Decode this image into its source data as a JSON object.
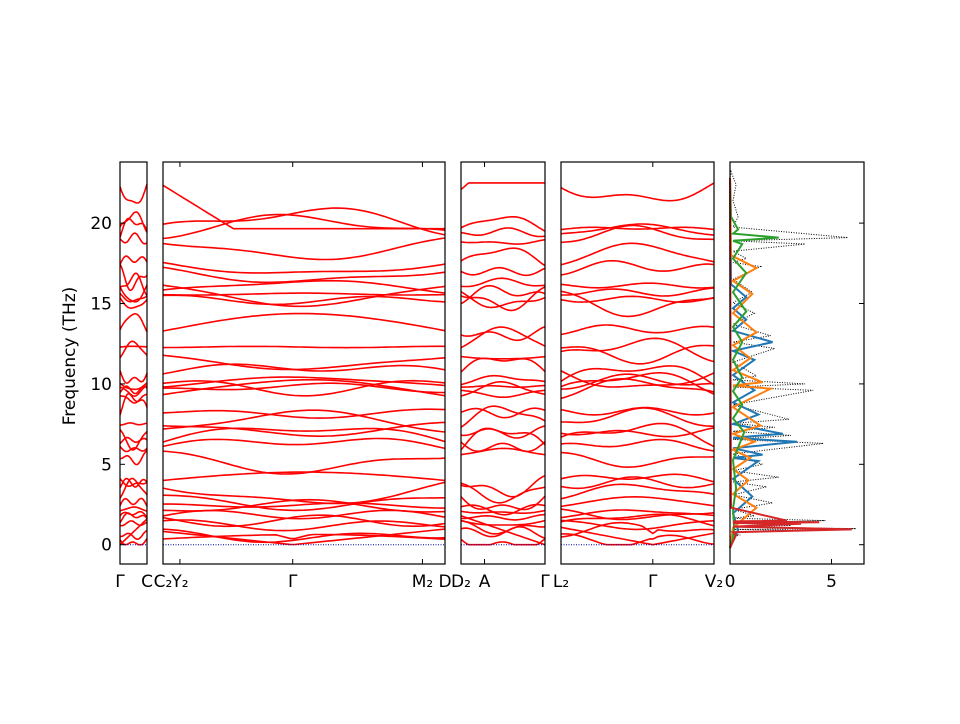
{
  "chart_data": {
    "type": "line",
    "title": "",
    "ylabel": "Frequency (THz)",
    "ylim": [
      -1.2,
      23.8
    ],
    "yticks": [
      0,
      5,
      10,
      15,
      20
    ],
    "grid": false,
    "band_color": "#ff0000",
    "zero_line_color": "#0000aa",
    "path_segments": [
      {
        "labels": [
          "Γ",
          "C"
        ],
        "xlim": [
          0,
          1
        ],
        "crossing": true
      },
      {
        "labels": [
          "C₂",
          "Y₂",
          "Γ",
          "M₂",
          "D"
        ],
        "label_positions": [
          0,
          0.06,
          0.46,
          0.92,
          1
        ]
      },
      {
        "labels": [
          "D₂",
          "A",
          "Γ"
        ],
        "label_positions": [
          0,
          0.28,
          1
        ]
      },
      {
        "labels": [
          "L₂",
          "Γ",
          "V₂"
        ],
        "label_positions": [
          0,
          0.6,
          1
        ]
      }
    ],
    "band_frequencies_at_start": [
      0,
      0.35,
      0.7,
      1.3,
      1.5,
      1.75,
      2.1,
      2.4,
      3.0,
      3.7,
      4.0,
      5.6,
      6.05,
      6.4,
      7.1,
      7.5,
      8.3,
      9.3,
      9.6,
      9.85,
      10.05,
      10.75,
      11.7,
      12.3,
      13.3,
      15.3,
      15.55,
      15.75,
      16.1,
      17.1,
      17.5,
      18.9,
      19.3,
      19.6,
      22.35
    ],
    "band_frequencies_range": [
      0,
      22.5
    ],
    "dos_panel": {
      "xticks": [
        0,
        5
      ],
      "xlim": [
        0,
        6.6
      ],
      "series": [
        {
          "color": "#000000",
          "style": "dotted",
          "points": [
            [
              0.0,
              0.5
            ],
            [
              0.5,
              0.6
            ],
            [
              2.8,
              0.9
            ],
            [
              6.2,
              1.0
            ],
            [
              3.0,
              1.2
            ],
            [
              4.7,
              1.5
            ],
            [
              1.2,
              1.8
            ],
            [
              2.1,
              2.6
            ],
            [
              1.8,
              3.6
            ],
            [
              2.4,
              4.2
            ],
            [
              1.6,
              5.0
            ],
            [
              4.6,
              6.3
            ],
            [
              3.0,
              6.8
            ],
            [
              2.2,
              7.3
            ],
            [
              2.9,
              7.8
            ],
            [
              4.1,
              9.6
            ],
            [
              3.7,
              10.0
            ],
            [
              1.3,
              10.5
            ],
            [
              2.2,
              12.2
            ],
            [
              2.0,
              13.0
            ],
            [
              1.2,
              14.4
            ],
            [
              1.1,
              15.7
            ],
            [
              1.5,
              17.3
            ],
            [
              0.8,
              17.8
            ],
            [
              5.8,
              19.1
            ],
            [
              3.7,
              18.7
            ],
            [
              0.4,
              20.4
            ],
            [
              0.3,
              22.4
            ]
          ]
        },
        {
          "color": "#1f77b4",
          "style": "solid",
          "points": [
            [
              0.4,
              0.9
            ],
            [
              1.1,
              3.0
            ],
            [
              1.4,
              5.2
            ],
            [
              1.6,
              5.6
            ],
            [
              3.3,
              6.4
            ],
            [
              2.6,
              6.9
            ],
            [
              1.4,
              8.1
            ],
            [
              1.2,
              9.6
            ],
            [
              1.2,
              11.5
            ],
            [
              2.1,
              12.6
            ],
            [
              0.8,
              14.0
            ],
            [
              0.8,
              15.4
            ]
          ]
        },
        {
          "color": "#ff7f0e",
          "style": "solid",
          "points": [
            [
              1.3,
              2.3
            ],
            [
              0.9,
              4.0
            ],
            [
              1.0,
              5.4
            ],
            [
              1.2,
              6.4
            ],
            [
              1.5,
              7.4
            ],
            [
              2.0,
              9.7
            ],
            [
              1.6,
              10.1
            ],
            [
              1.0,
              11.6
            ],
            [
              1.3,
              13.2
            ],
            [
              1.1,
              15.6
            ],
            [
              1.3,
              17.2
            ]
          ]
        },
        {
          "color": "#2ca02c",
          "style": "solid",
          "points": [
            [
              0.2,
              1.0
            ],
            [
              0.3,
              3.5
            ],
            [
              0.7,
              7.0
            ],
            [
              0.6,
              8.7
            ],
            [
              0.6,
              10.4
            ],
            [
              0.6,
              12.6
            ],
            [
              0.8,
              14.5
            ],
            [
              0.8,
              16.9
            ],
            [
              2.4,
              19.1
            ],
            [
              0.6,
              18.7
            ],
            [
              0.4,
              19.6
            ]
          ]
        },
        {
          "color": "#d62728",
          "style": "solid",
          "points": [
            [
              0.3,
              0.6
            ],
            [
              2.8,
              1.5
            ],
            [
              3.5,
              1.3
            ],
            [
              6.0,
              0.95
            ],
            [
              4.4,
              1.4
            ]
          ]
        }
      ]
    }
  }
}
